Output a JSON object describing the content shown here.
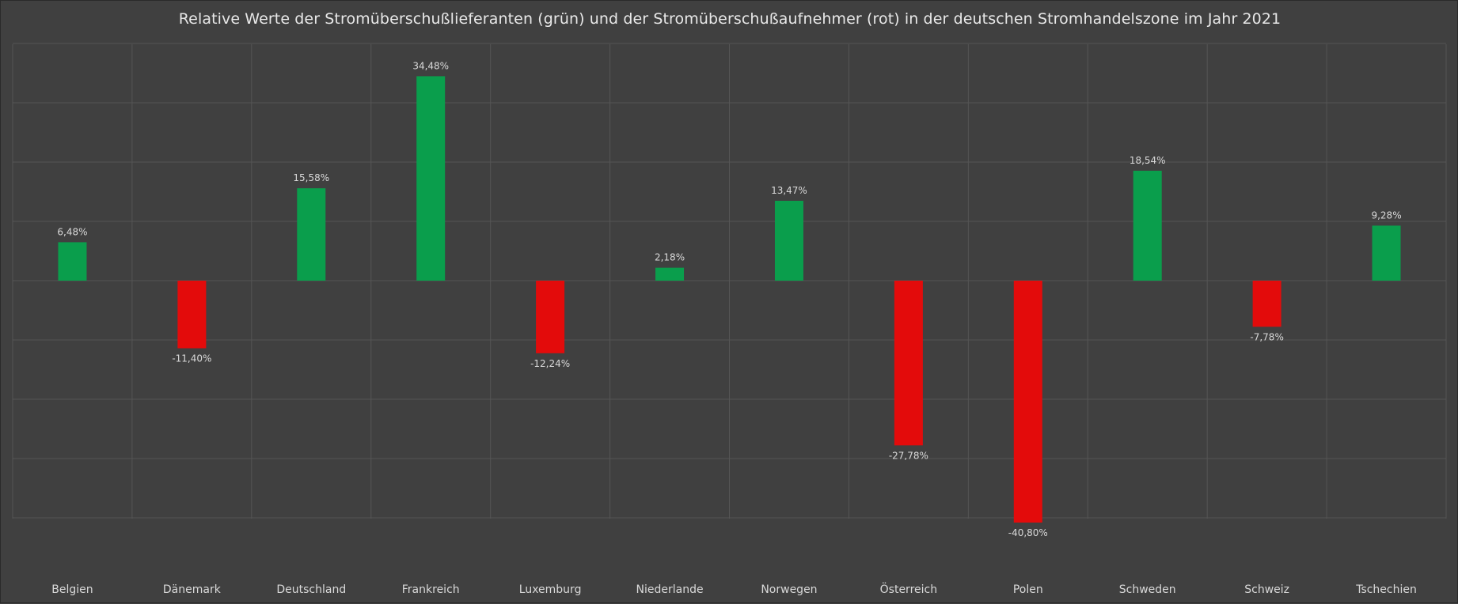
{
  "chart_data": {
    "type": "bar",
    "title": "Relative Werte der Stromüberschußlieferanten (grün) und der Stromüberschußaufnehmer (rot) in der deutschen Stromhandelszone im Jahr 2021",
    "xlabel": "",
    "ylabel": "",
    "categories": [
      "Belgien",
      "Dänemark",
      "Deutschland",
      "Frankreich",
      "Luxemburg",
      "Niederlande",
      "Norwegen",
      "Österreich",
      "Polen",
      "Schweden",
      "Schweiz",
      "Tschechien"
    ],
    "values": [
      6.48,
      -11.4,
      15.58,
      34.48,
      -12.24,
      2.18,
      13.47,
      -27.78,
      -40.8,
      18.54,
      -7.78,
      9.28
    ],
    "data_labels": [
      "6,48%",
      "-11,40%",
      "15,58%",
      "34,48%",
      "-12,24%",
      "2,18%",
      "13,47%",
      "-27,78%",
      "-40,80%",
      "18,54%",
      "-7,78%",
      "9,28%"
    ],
    "ylim": [
      -50,
      40
    ],
    "grid": true,
    "legend": "none",
    "colors": {
      "positive": "#0a9e4c",
      "negative": "#e30b0b",
      "background": "#404040",
      "grid": "#555555",
      "text": "#d9d9d9"
    }
  }
}
